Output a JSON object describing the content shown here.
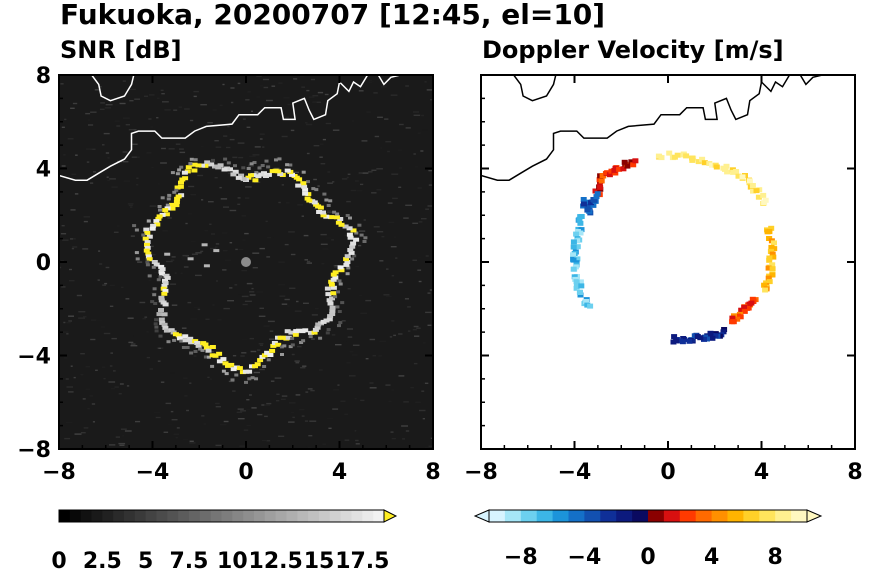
{
  "figure": {
    "title": "Fukuoka, 20200707 [12:45, el=10]"
  },
  "chart_data": [
    {
      "type": "heatmap",
      "title": "SNR [dB]",
      "xlim": [
        -8,
        8
      ],
      "ylim": [
        -8,
        8
      ],
      "x_ticks": [
        "−8",
        "−4",
        "0",
        "4",
        "8"
      ],
      "y_ticks": [
        "8",
        "4",
        "0",
        "−4",
        "−8"
      ],
      "background_color": "#1a1a1a",
      "coastline_color": "#ffffff",
      "echo_ring": {
        "center": [
          0,
          0
        ],
        "radius_km": 4.1,
        "values_db": [
          16,
          18,
          18,
          17,
          15,
          18,
          19,
          18,
          16,
          14,
          17,
          19,
          18,
          17,
          15,
          18
        ]
      },
      "colorbar": {
        "tick_labels": [
          "0",
          "2.5",
          "5",
          "7.5",
          "10",
          "12.5",
          "15",
          "17.5"
        ],
        "range": [
          0,
          18.75
        ],
        "n_bins": 30,
        "extend": "max",
        "low_color": "#000000",
        "high_color": "#f2f2f2",
        "over_color": "#ffee22"
      }
    },
    {
      "type": "heatmap",
      "title": "Doppler Velocity [m/s]",
      "xlim": [
        -8,
        8
      ],
      "ylim": [
        -8,
        8
      ],
      "x_ticks": [
        "−8",
        "−4",
        "0",
        "4",
        "8"
      ],
      "y_ticks": [
        "8",
        "4",
        "0",
        "−4",
        "−8"
      ],
      "background_color": "#ffffff",
      "coastline_color": "#000000",
      "echo_segments": [
        {
          "x": [
            -3.7,
            -3.9,
            -4.0,
            -3.8,
            -3.4
          ],
          "y": [
            2.0,
            1.0,
            0.0,
            -1.0,
            -2.0
          ],
          "value": -7
        },
        {
          "x": [
            -3.0,
            -2.8,
            -2.2,
            -1.5
          ],
          "y": [
            3.0,
            3.6,
            4.0,
            4.3
          ],
          "value": 2
        },
        {
          "x": [
            -3.6,
            -3.4,
            -3.1
          ],
          "y": [
            2.6,
            2.2,
            2.9
          ],
          "value": -4
        },
        {
          "x": [
            -0.5,
            1.0,
            2.5,
            3.5,
            4.2
          ],
          "y": [
            4.6,
            4.5,
            4.0,
            3.4,
            2.5
          ],
          "value": 8
        },
        {
          "x": [
            4.3,
            4.5,
            4.4,
            4.1
          ],
          "y": [
            1.5,
            0.5,
            -0.5,
            -1.2
          ],
          "value": 6
        },
        {
          "x": [
            3.8,
            3.3,
            2.7
          ],
          "y": [
            -1.6,
            -2.0,
            -2.6
          ],
          "value": 3
        },
        {
          "x": [
            2.4,
            1.8,
            1.0,
            0.2
          ],
          "y": [
            -3.0,
            -3.2,
            -3.3,
            -3.3
          ],
          "value": -2
        }
      ],
      "colorbar": {
        "tick_labels": [
          "−8",
          "−4",
          "0",
          "4",
          "8"
        ],
        "range": [
          -10,
          10
        ],
        "n_bins": 20,
        "extend": "both",
        "colors": [
          "#d8f4ff",
          "#a6e6f7",
          "#6cd0ef",
          "#3cb6e6",
          "#1c94da",
          "#1470c8",
          "#1250b0",
          "#0f2f98",
          "#0c1a7e",
          "#0a0a60",
          "#8a0000",
          "#d81010",
          "#ff3a00",
          "#ff6a00",
          "#ff9000",
          "#ffb400",
          "#ffd028",
          "#ffe45c",
          "#fff090",
          "#fff8c0"
        ]
      }
    }
  ]
}
